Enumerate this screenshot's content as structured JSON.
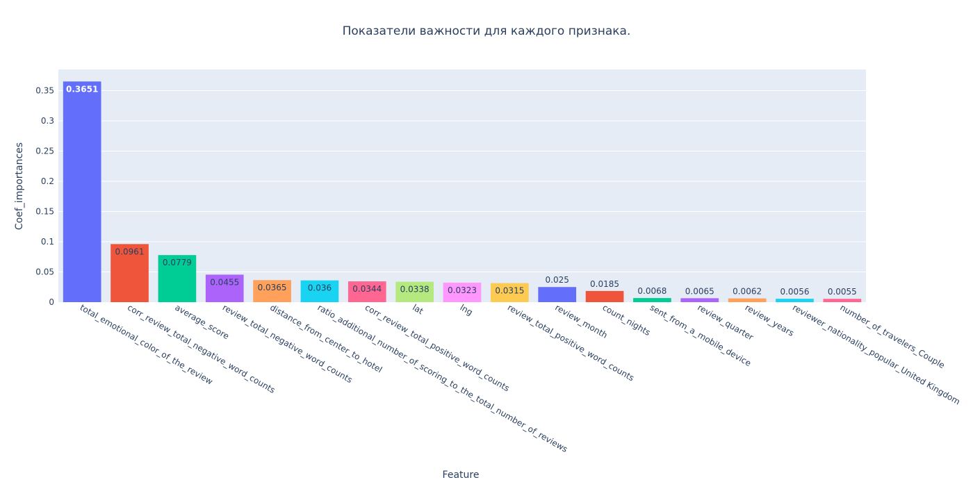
{
  "chart_data": {
    "type": "bar",
    "title": "Показатели важности для каждого признака.",
    "xlabel": "Feature",
    "ylabel": "Coef_importances",
    "ylim": [
      0,
      0.385
    ],
    "yticks": [
      0,
      0.05,
      0.1,
      0.15,
      0.2,
      0.25,
      0.3,
      0.35
    ],
    "ytick_labels": [
      "0",
      "0.05",
      "0.1",
      "0.15",
      "0.2",
      "0.25",
      "0.3",
      "0.35"
    ],
    "grid": true,
    "categories": [
      "total_emotional_color_of_the_review",
      "corr_review_total_negative_word_counts",
      "average_score",
      "review_total_negative_word_counts",
      "distance_from_center_to_hotel",
      "ratio_additional_number_of_scoring_to_the_total_number_of_reviews",
      "corr_review_total_positive_word_counts",
      "lat",
      "lng",
      "review_total_positive_word_counts",
      "review_month",
      "count_nights",
      "sent_from_a_mobile_device",
      "review_quarter",
      "review_years",
      "reviewer_nationality_popular_United Kingdom",
      "number_of_travelers_Couple"
    ],
    "values": [
      0.3651,
      0.0961,
      0.0779,
      0.0455,
      0.0365,
      0.036,
      0.0344,
      0.0338,
      0.0323,
      0.0315,
      0.025,
      0.0185,
      0.0068,
      0.0065,
      0.0062,
      0.0056,
      0.0055
    ],
    "value_labels": [
      "0.3651",
      "0.0961",
      "0.0779",
      "0.0455",
      "0.0365",
      "0.036",
      "0.0344",
      "0.0338",
      "0.0323",
      "0.0315",
      "0.025",
      "0.0185",
      "0.0068",
      "0.0065",
      "0.0062",
      "0.0056",
      "0.0055"
    ],
    "colors": [
      "#636efa",
      "#ef553b",
      "#00cc96",
      "#ab63fa",
      "#ffa15a",
      "#19d3f3",
      "#ff6692",
      "#b6e880",
      "#ff97ff",
      "#fecb52",
      "#636efa",
      "#ef553b",
      "#00cc96",
      "#ab63fa",
      "#ffa15a",
      "#19d3f3",
      "#ff6692"
    ],
    "label_colors": [
      "#ffffff",
      "#2a3f5f",
      "#2a3f5f",
      "#2a3f5f",
      "#2a3f5f",
      "#2a3f5f",
      "#2a3f5f",
      "#2a3f5f",
      "#2a3f5f",
      "#2a3f5f",
      "#ffffff",
      "#2a3f5f",
      "#2a3f5f",
      "#2a3f5f",
      "#2a3f5f",
      "#2a3f5f",
      "#2a3f5f"
    ],
    "plot_background": "#e5ecf6",
    "text_color": "#2a3f5f"
  }
}
